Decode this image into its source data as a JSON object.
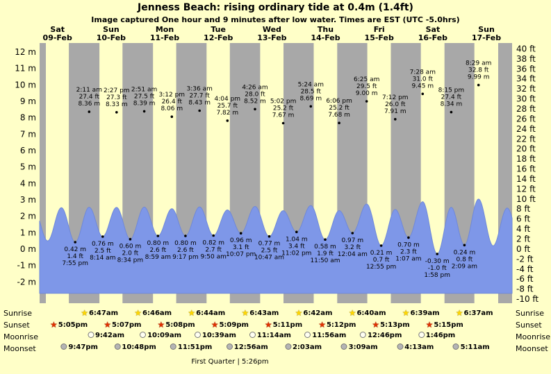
{
  "title": "Jenness Beach: rising  ordinary tide at 0.4m (1.4ft)",
  "subtitle": "Image captured One hour and 9 minutes after low water. Times are EST (UTC -5.0hrs)",
  "chart_data": {
    "type": "area",
    "days": [
      {
        "dow": "Sat",
        "date": "09-Feb"
      },
      {
        "dow": "Sun",
        "date": "10-Feb"
      },
      {
        "dow": "Mon",
        "date": "11-Feb"
      },
      {
        "dow": "Tue",
        "date": "12-Feb"
      },
      {
        "dow": "Wed",
        "date": "13-Feb"
      },
      {
        "dow": "Thu",
        "date": "14-Feb"
      },
      {
        "dow": "Fri",
        "date": "15-Feb"
      },
      {
        "dow": "Sat",
        "date": "16-Feb"
      },
      {
        "dow": "Sun",
        "date": "17-Feb"
      }
    ],
    "y_axis_left": {
      "unit": "m",
      "ticks": [
        12,
        11,
        10,
        9,
        8,
        7,
        6,
        5,
        4,
        3,
        2,
        1,
        0,
        -1,
        -2
      ]
    },
    "y_axis_right": {
      "unit": "ft",
      "ticks": [
        40,
        38,
        36,
        34,
        32,
        30,
        28,
        26,
        24,
        22,
        20,
        18,
        16,
        14,
        12,
        10,
        8,
        6,
        4,
        2,
        0,
        -2,
        -4,
        -6,
        -8,
        -10
      ]
    },
    "tide_events": [
      {
        "day": 0,
        "type": "low",
        "time": "7:55 pm",
        "m": "0.42",
        "ft": "1.4"
      },
      {
        "day": 1,
        "type": "high",
        "time": "2:11 am",
        "m": "8.36",
        "ft": "27.4"
      },
      {
        "day": 1,
        "type": "low",
        "time": "8:14 am",
        "m": "0.76",
        "ft": "2.5"
      },
      {
        "day": 1,
        "type": "high",
        "time": "2:27 pm",
        "m": "8.33",
        "ft": "27.3"
      },
      {
        "day": 1,
        "type": "low",
        "time": "8:34 pm",
        "m": "0.60",
        "ft": "2.0"
      },
      {
        "day": 2,
        "type": "high",
        "time": "2:51 am",
        "m": "8.39",
        "ft": "27.5"
      },
      {
        "day": 2,
        "type": "low",
        "time": "8:59 am",
        "m": "0.80",
        "ft": "2.6"
      },
      {
        "day": 2,
        "type": "high",
        "time": "3:12 pm",
        "m": "8.06",
        "ft": "26.4"
      },
      {
        "day": 2,
        "type": "low",
        "time": "9:17 pm",
        "m": "0.80",
        "ft": "2.6"
      },
      {
        "day": 3,
        "type": "high",
        "time": "3:36 am",
        "m": "8.43",
        "ft": "27.7"
      },
      {
        "day": 3,
        "type": "low",
        "time": "9:50 am",
        "m": "0.82",
        "ft": "2.7"
      },
      {
        "day": 3,
        "type": "high",
        "time": "4:04 pm",
        "m": "7.82",
        "ft": "25.7"
      },
      {
        "day": 3,
        "type": "low",
        "time": "10:07 pm",
        "m": "0.96",
        "ft": "3.1"
      },
      {
        "day": 4,
        "type": "high",
        "time": "4:26 am",
        "m": "8.52",
        "ft": "28.0"
      },
      {
        "day": 4,
        "type": "low",
        "time": "10:47 am",
        "m": "0.77",
        "ft": "2.5"
      },
      {
        "day": 4,
        "type": "high",
        "time": "5:02 pm",
        "m": "7.67",
        "ft": "25.2"
      },
      {
        "day": 4,
        "type": "low",
        "time": "11:02 pm",
        "m": "1.04",
        "ft": "3.4"
      },
      {
        "day": 5,
        "type": "high",
        "time": "5:24 am",
        "m": "8.69",
        "ft": "28.5"
      },
      {
        "day": 5,
        "type": "low",
        "time": "11:50 am",
        "m": "0.58",
        "ft": "1.9"
      },
      {
        "day": 5,
        "type": "high",
        "time": "6:06 pm",
        "m": "7.68",
        "ft": "25.2"
      },
      {
        "day": 6,
        "type": "low",
        "time": "12:04 am",
        "m": "0.97",
        "ft": "3.2"
      },
      {
        "day": 6,
        "type": "high",
        "time": "6:25 am",
        "m": "9.00",
        "ft": "29.5"
      },
      {
        "day": 6,
        "type": "low",
        "time": "12:55 pm",
        "m": "0.21",
        "ft": "0.7"
      },
      {
        "day": 6,
        "type": "high",
        "time": "7:12 pm",
        "m": "7.91",
        "ft": "26.0"
      },
      {
        "day": 7,
        "type": "low",
        "time": "1:07 am",
        "m": "0.70",
        "ft": "2.3"
      },
      {
        "day": 7,
        "type": "high",
        "time": "7:28 am",
        "m": "9.45",
        "ft": "31.0"
      },
      {
        "day": 7,
        "type": "low",
        "time": "1:58 pm",
        "m": "-0.30",
        "ft": "-1.0"
      },
      {
        "day": 7,
        "type": "high",
        "time": "8:15 pm",
        "m": "8.34",
        "ft": "27.4"
      },
      {
        "day": 8,
        "type": "low",
        "time": "2:09 am",
        "m": "0.24",
        "ft": "0.8"
      },
      {
        "day": 8,
        "type": "high",
        "time": "8:29 am",
        "m": "9.99",
        "ft": "32.8"
      }
    ],
    "colors": {
      "background": "#ffffc8",
      "day_band": "#ffffc8",
      "night_band": "#a8a8a8",
      "tide_fill": "#7e97e8",
      "day_header": "#dd0000"
    }
  },
  "astro": {
    "rows": [
      {
        "key": "sunrise",
        "label": "Sunrise",
        "icon": "sunrise-star-icon",
        "entries": [
          {
            "day": 1,
            "time": "6:47am"
          },
          {
            "day": 2,
            "time": "6:46am"
          },
          {
            "day": 3,
            "time": "6:44am"
          },
          {
            "day": 4,
            "time": "6:43am"
          },
          {
            "day": 5,
            "time": "6:42am"
          },
          {
            "day": 6,
            "time": "6:40am"
          },
          {
            "day": 7,
            "time": "6:39am"
          },
          {
            "day": 8,
            "time": "6:37am"
          }
        ]
      },
      {
        "key": "sunset",
        "label": "Sunset",
        "icon": "sunset-star-icon",
        "entries": [
          {
            "day": 0,
            "time": "5:05pm"
          },
          {
            "day": 1,
            "time": "5:07pm"
          },
          {
            "day": 2,
            "time": "5:08pm"
          },
          {
            "day": 3,
            "time": "5:09pm"
          },
          {
            "day": 4,
            "time": "5:11pm"
          },
          {
            "day": 5,
            "time": "5:12pm"
          },
          {
            "day": 6,
            "time": "5:13pm"
          },
          {
            "day": 7,
            "time": "5:15pm"
          }
        ]
      },
      {
        "key": "moonrise",
        "label": "Moonrise",
        "icon": "moonrise-circle-icon",
        "entries": [
          {
            "day": 1,
            "time": "9:42am"
          },
          {
            "day": 2,
            "time": "10:09am"
          },
          {
            "day": 3,
            "time": "10:39am"
          },
          {
            "day": 4,
            "time": "11:14am"
          },
          {
            "day": 5,
            "time": "11:56am"
          },
          {
            "day": 6,
            "time": "12:46pm"
          },
          {
            "day": 7,
            "time": "1:46pm"
          }
        ]
      },
      {
        "key": "moonset",
        "label": "Moonset",
        "icon": "moonset-circle-icon",
        "entries": [
          {
            "day": 0,
            "time": "9:47pm"
          },
          {
            "day": 1,
            "time": "10:48pm"
          },
          {
            "day": 2,
            "time": "11:51pm"
          },
          {
            "day": 4,
            "time": "12:56am"
          },
          {
            "day": 5,
            "time": "2:03am"
          },
          {
            "day": 6,
            "time": "3:09am"
          },
          {
            "day": 7,
            "time": "4:13am"
          },
          {
            "day": 8,
            "time": "5:11am"
          }
        ]
      }
    ],
    "footer": "First Quarter | 5:26pm"
  }
}
